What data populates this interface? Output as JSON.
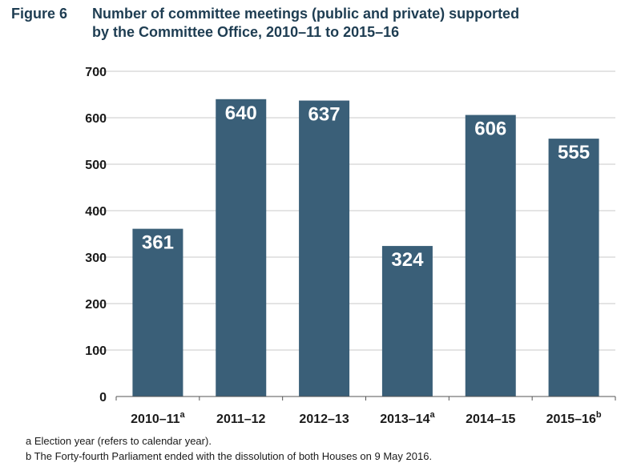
{
  "figure": {
    "number": "Figure 6",
    "title_line1": "Number of committee meetings (public and private) supported",
    "title_line2": "by the Committee Office, 2010–11 to 2015–16"
  },
  "chart_data": {
    "type": "bar",
    "title": "Number of committee meetings (public and private) supported by the Committee Office, 2010–11 to 2015–16",
    "categories": [
      "2010–11",
      "2011–12",
      "2012–13",
      "2013–14",
      "2014–15",
      "2015–16"
    ],
    "category_superscripts": [
      "a",
      "",
      "",
      "a",
      "",
      "b"
    ],
    "values": [
      361,
      640,
      637,
      324,
      606,
      555
    ],
    "data_labels": [
      "361",
      "640",
      "637",
      "324",
      "606",
      "555"
    ],
    "ylim": [
      0,
      700
    ],
    "yticks": [
      0,
      100,
      200,
      300,
      400,
      500,
      600,
      700
    ],
    "grid": true,
    "legend": "none",
    "xlabel": "",
    "ylabel": "",
    "colors": {
      "bar": "#3a5f78",
      "grid": "#c8c8c8",
      "axis": "#555555",
      "data_label": "#ffffff"
    }
  },
  "footnotes": [
    "a Election year (refers to calendar year).",
    "b The Forty-fourth Parliament ended with the dissolution of both Houses on 9 May 2016."
  ]
}
